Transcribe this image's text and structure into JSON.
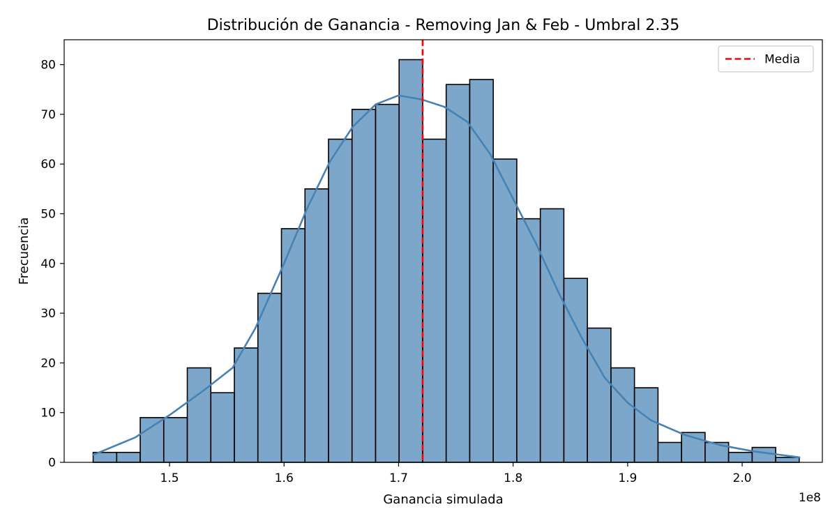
{
  "chart_data": {
    "type": "histogram",
    "title": "Distribución de Ganancia - Removing Jan & Feb - Umbral 2.35",
    "xlabel": "Ganancia simulada",
    "ylabel": "Frecuencia",
    "x_offset_label": "1e8",
    "xlim": [
      1.408,
      2.07
    ],
    "ylim": [
      0,
      85
    ],
    "x_ticks": [
      1.5,
      1.6,
      1.7,
      1.8,
      1.9,
      2.0
    ],
    "x_tick_labels": [
      "1.5",
      "1.6",
      "1.7",
      "1.8",
      "1.9",
      "2.0"
    ],
    "y_ticks": [
      0,
      10,
      20,
      30,
      40,
      50,
      60,
      70,
      80
    ],
    "y_tick_labels": [
      "0",
      "10",
      "20",
      "30",
      "40",
      "50",
      "60",
      "70",
      "80"
    ],
    "bin_start": 1.4333,
    "bin_width": 0.02055,
    "counts": [
      2,
      2,
      9,
      9,
      19,
      14,
      23,
      34,
      47,
      55,
      65,
      71,
      72,
      81,
      65,
      76,
      77,
      61,
      49,
      51,
      37,
      27,
      19,
      15,
      4,
      6,
      4,
      2,
      3,
      1
    ],
    "bar_color": "#4682b4",
    "bar_opacity": 0.7,
    "kde": {
      "color": "#4682b4",
      "points": [
        [
          1.4333,
          1.5
        ],
        [
          1.47,
          5.0
        ],
        [
          1.5,
          9.5
        ],
        [
          1.53,
          14.5
        ],
        [
          1.555,
          19.0
        ],
        [
          1.575,
          27.0
        ],
        [
          1.6,
          40.0
        ],
        [
          1.62,
          51.0
        ],
        [
          1.64,
          60.5
        ],
        [
          1.66,
          67.5
        ],
        [
          1.68,
          72.0
        ],
        [
          1.7,
          73.8
        ],
        [
          1.72,
          73.0
        ],
        [
          1.74,
          71.5
        ],
        [
          1.76,
          68.5
        ],
        [
          1.78,
          62.0
        ],
        [
          1.8,
          53.0
        ],
        [
          1.82,
          44.0
        ],
        [
          1.84,
          34.0
        ],
        [
          1.86,
          25.0
        ],
        [
          1.88,
          17.0
        ],
        [
          1.9,
          12.0
        ],
        [
          1.92,
          8.5
        ],
        [
          1.95,
          5.5
        ],
        [
          1.98,
          3.5
        ],
        [
          2.01,
          2.2
        ],
        [
          2.05,
          1.0
        ]
      ]
    },
    "mean": 1.721,
    "mean_color": "#ff0000",
    "legend": {
      "position": "top-right",
      "entries": [
        {
          "label": "Media",
          "style": "dashed",
          "color": "#ff0000"
        }
      ]
    },
    "grid": false
  }
}
